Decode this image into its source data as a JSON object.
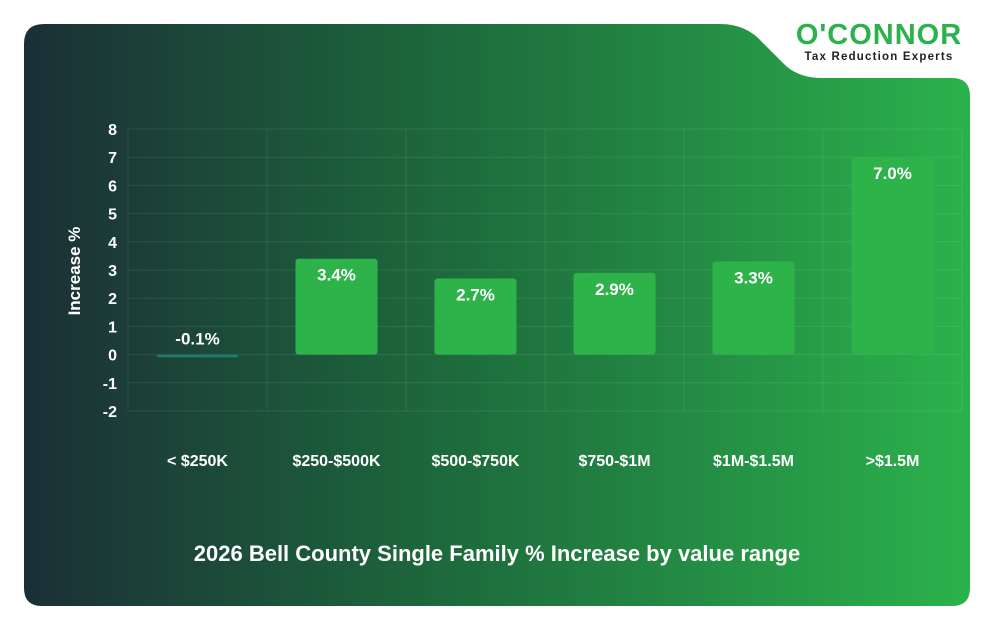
{
  "brand": {
    "name": "O'CONNOR",
    "tagline": "Tax Reduction Experts"
  },
  "chart_data": {
    "type": "bar",
    "title": "2026 Bell County Single Family % Increase by value range",
    "xlabel": "",
    "ylabel": "Increase %",
    "ylim": [
      -2,
      8
    ],
    "yticks": [
      "8",
      "7",
      "6",
      "5",
      "4",
      "3",
      "2",
      "1",
      "0",
      "-1",
      "-2"
    ],
    "categories": [
      "< $250K",
      "$250-$500K",
      "$500-$750K",
      "$750-$1M",
      "$1M-$1.5M",
      ">$1.5M"
    ],
    "values": [
      -0.1,
      3.4,
      2.7,
      2.9,
      3.3,
      7.0
    ],
    "data_labels": [
      "-0.1%",
      "3.4%",
      "2.7%",
      "2.9%",
      "3.3%",
      "7.0%"
    ],
    "grid": true,
    "colors": {
      "bar_positive": "#2db34a",
      "bar_negative": "#1f7a6e",
      "bg_dark": "#1b2f36",
      "bg_light": "#2bb24c",
      "grid": "#ffffff",
      "text": "#ffffff"
    }
  }
}
